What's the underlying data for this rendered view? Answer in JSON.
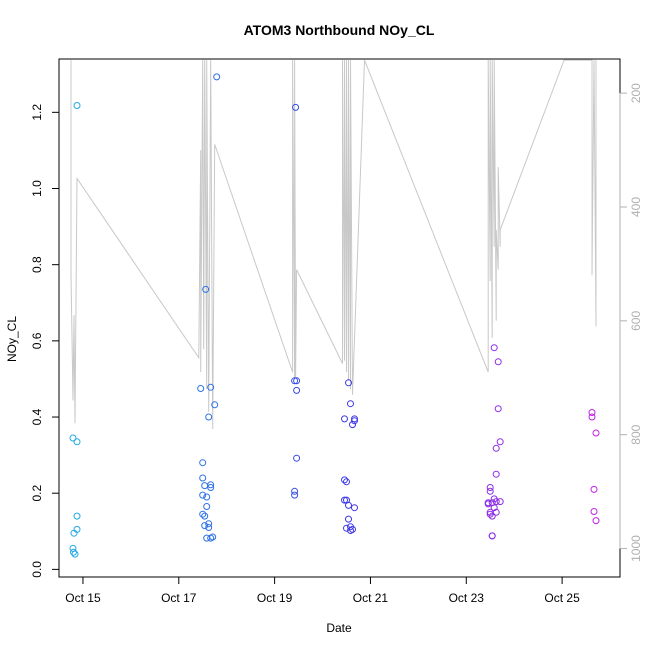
{
  "chart_data": {
    "type": "scatter",
    "title": "ATOM3 Northbound NOy_CL",
    "xlabel": "Date",
    "ylabel": "NOy_CL",
    "x_range": [
      "2017-10-14T12:00",
      "2017-10-26T05:00"
    ],
    "y_range": [
      -0.02,
      1.34
    ],
    "y_ticks": [
      0.0,
      0.2,
      0.4,
      0.6,
      0.8,
      1.0,
      1.2
    ],
    "y_tick_labels": [
      "0.0",
      "0.2",
      "0.4",
      "0.6",
      "0.8",
      "1.0",
      "1.2"
    ],
    "x_ticks": [
      "2017-10-15",
      "2017-10-17",
      "2017-10-19",
      "2017-10-21",
      "2017-10-23",
      "2017-10-25"
    ],
    "x_tick_labels": [
      "Oct 15",
      "Oct 17",
      "Oct 19",
      "Oct 21",
      "Oct 23",
      "Oct 25"
    ],
    "right_axis": {
      "range": [
        140,
        1050
      ],
      "ticks": [
        200,
        400,
        600,
        800,
        1000
      ],
      "tick_labels": [
        "200",
        "400",
        "600",
        "800",
        "1000"
      ],
      "reversed": true,
      "color": "#b0b0b0"
    },
    "grid": false,
    "point_color_start": "#1fb0e6",
    "point_color_mid": "#3a3ae6",
    "point_color_end": "#d020e6",
    "line_color": "#c8c8c8",
    "series": [
      {
        "type": "scatter",
        "points": [
          [
            "2017-10-14T19:00",
            0.345
          ],
          [
            "2017-10-14T19:30",
            0.095
          ],
          [
            "2017-10-14T19:00",
            0.055
          ],
          [
            "2017-10-14T19:15",
            0.045
          ],
          [
            "2017-10-14T20:00",
            0.04
          ],
          [
            "2017-10-14T21:00",
            1.218
          ],
          [
            "2017-10-14T21:00",
            0.335
          ],
          [
            "2017-10-14T21:00",
            0.14
          ],
          [
            "2017-10-14T21:00",
            0.105
          ],
          [
            "2017-10-17T11:00",
            0.475
          ],
          [
            "2017-10-17T12:00",
            0.28
          ],
          [
            "2017-10-17T12:00",
            0.24
          ],
          [
            "2017-10-17T12:00",
            0.195
          ],
          [
            "2017-10-17T12:00",
            0.145
          ],
          [
            "2017-10-17T13:00",
            0.22
          ],
          [
            "2017-10-17T13:00",
            0.14
          ],
          [
            "2017-10-17T13:00",
            0.115
          ],
          [
            "2017-10-17T13:30",
            0.735
          ],
          [
            "2017-10-17T14:00",
            0.19
          ],
          [
            "2017-10-17T14:00",
            0.165
          ],
          [
            "2017-10-17T14:00",
            0.082
          ],
          [
            "2017-10-17T15:00",
            0.4
          ],
          [
            "2017-10-17T15:00",
            0.12
          ],
          [
            "2017-10-17T15:00",
            0.11
          ],
          [
            "2017-10-17T16:00",
            0.478
          ],
          [
            "2017-10-17T16:00",
            0.222
          ],
          [
            "2017-10-17T16:00",
            0.215
          ],
          [
            "2017-10-17T16:00",
            0.082
          ],
          [
            "2017-10-17T17:00",
            0.085
          ],
          [
            "2017-10-17T18:00",
            0.432
          ],
          [
            "2017-10-17T19:00",
            1.293
          ],
          [
            "2017-10-19T10:00",
            0.495
          ],
          [
            "2017-10-19T10:00",
            0.195
          ],
          [
            "2017-10-19T10:00",
            0.205
          ],
          [
            "2017-10-19T10:30",
            1.213
          ],
          [
            "2017-10-19T11:00",
            0.495
          ],
          [
            "2017-10-19T11:00",
            0.47
          ],
          [
            "2017-10-19T11:00",
            0.292
          ],
          [
            "2017-10-20T11:00",
            0.395
          ],
          [
            "2017-10-20T11:00",
            0.235
          ],
          [
            "2017-10-20T11:00",
            0.182
          ],
          [
            "2017-10-20T12:00",
            0.23
          ],
          [
            "2017-10-20T12:00",
            0.182
          ],
          [
            "2017-10-20T12:00",
            0.108
          ],
          [
            "2017-10-20T13:00",
            0.49
          ],
          [
            "2017-10-20T13:00",
            0.132
          ],
          [
            "2017-10-20T13:00",
            0.168
          ],
          [
            "2017-10-20T14:00",
            0.435
          ],
          [
            "2017-10-20T14:00",
            0.112
          ],
          [
            "2017-10-20T14:00",
            0.102
          ],
          [
            "2017-10-20T15:00",
            0.38
          ],
          [
            "2017-10-20T15:00",
            0.105
          ],
          [
            "2017-10-20T16:00",
            0.395
          ],
          [
            "2017-10-20T16:00",
            0.39
          ],
          [
            "2017-10-20T16:00",
            0.162
          ],
          [
            "2017-10-23T11:00",
            0.175
          ],
          [
            "2017-10-23T11:00",
            0.172
          ],
          [
            "2017-10-23T12:00",
            0.215
          ],
          [
            "2017-10-23T12:00",
            0.205
          ],
          [
            "2017-10-23T12:00",
            0.15
          ],
          [
            "2017-10-23T12:00",
            0.145
          ],
          [
            "2017-10-23T13:00",
            0.088
          ],
          [
            "2017-10-23T13:00",
            0.088
          ],
          [
            "2017-10-23T13:00",
            0.14
          ],
          [
            "2017-10-23T13:00",
            0.175
          ],
          [
            "2017-10-23T14:00",
            0.582
          ],
          [
            "2017-10-23T14:00",
            0.185
          ],
          [
            "2017-10-23T14:00",
            0.162
          ],
          [
            "2017-10-23T15:00",
            0.25
          ],
          [
            "2017-10-23T15:00",
            0.178
          ],
          [
            "2017-10-23T15:00",
            0.15
          ],
          [
            "2017-10-23T15:00",
            0.318
          ],
          [
            "2017-10-23T16:00",
            0.545
          ],
          [
            "2017-10-23T16:00",
            0.422
          ],
          [
            "2017-10-23T17:00",
            0.335
          ],
          [
            "2017-10-23T17:00",
            0.178
          ],
          [
            "2017-10-25T15:00",
            0.412
          ],
          [
            "2017-10-25T15:00",
            0.4
          ],
          [
            "2017-10-25T16:00",
            0.21
          ],
          [
            "2017-10-25T16:00",
            0.152
          ],
          [
            "2017-10-25T17:00",
            0.358
          ],
          [
            "2017-10-25T17:00",
            0.128
          ]
        ]
      },
      {
        "type": "line",
        "axis": "right",
        "points": [
          [
            "2017-10-14T18:00",
            142
          ],
          [
            "2017-10-14T18:00",
            518
          ],
          [
            "2017-10-14T19:00",
            740
          ],
          [
            "2017-10-14T19:30",
            590
          ],
          [
            "2017-10-14T20:00",
            780
          ],
          [
            "2017-10-14T21:00",
            350
          ],
          [
            "2017-10-17T10:00",
            665
          ],
          [
            "2017-10-17T11:00",
            300
          ],
          [
            "2017-10-17T11:00",
            690
          ],
          [
            "2017-10-17T12:00",
            142
          ],
          [
            "2017-10-17T12:30",
            650
          ],
          [
            "2017-10-17T13:00",
            142
          ],
          [
            "2017-10-17T14:00",
            720
          ],
          [
            "2017-10-17T14:00",
            142
          ],
          [
            "2017-10-17T15:00",
            760
          ],
          [
            "2017-10-17T16:00",
            142
          ],
          [
            "2017-10-17T17:00",
            790
          ],
          [
            "2017-10-17T18:00",
            290
          ],
          [
            "2017-10-19T09:00",
            690
          ],
          [
            "2017-10-19T09:00",
            142
          ],
          [
            "2017-10-19T10:00",
            700
          ],
          [
            "2017-10-19T10:00",
            142
          ],
          [
            "2017-10-19T10:30",
            700
          ],
          [
            "2017-10-19T11:00",
            510
          ],
          [
            "2017-10-20T10:00",
            675
          ],
          [
            "2017-10-20T10:00",
            142
          ],
          [
            "2017-10-20T11:00",
            670
          ],
          [
            "2017-10-20T11:00",
            142
          ],
          [
            "2017-10-20T12:00",
            690
          ],
          [
            "2017-10-20T12:00",
            142
          ],
          [
            "2017-10-20T13:00",
            705
          ],
          [
            "2017-10-20T13:00",
            142
          ],
          [
            "2017-10-20T14:00",
            720
          ],
          [
            "2017-10-20T14:00",
            142
          ],
          [
            "2017-10-20T15:00",
            730
          ],
          [
            "2017-10-20T21:00",
            142
          ],
          [
            "2017-10-23T11:00",
            690
          ],
          [
            "2017-10-23T11:00",
            142
          ],
          [
            "2017-10-23T12:00",
            530
          ],
          [
            "2017-10-23T12:00",
            142
          ],
          [
            "2017-10-23T13:00",
            630
          ],
          [
            "2017-10-23T13:00",
            142
          ],
          [
            "2017-10-23T14:00",
            470
          ],
          [
            "2017-10-23T14:00",
            142
          ],
          [
            "2017-10-23T15:00",
            600
          ],
          [
            "2017-10-23T15:00",
            440
          ],
          [
            "2017-10-23T16:00",
            510
          ],
          [
            "2017-10-23T16:00",
            330
          ],
          [
            "2017-10-23T17:00",
            470
          ],
          [
            "2017-10-23T17:00",
            440
          ],
          [
            "2017-10-25T01:00",
            142
          ],
          [
            "2017-10-25T15:00",
            142
          ],
          [
            "2017-10-25T15:00",
            520
          ],
          [
            "2017-10-25T16:00",
            142
          ],
          [
            "2017-10-25T17:00",
            610
          ],
          [
            "2017-10-25T17:00",
            142
          ]
        ]
      }
    ]
  }
}
